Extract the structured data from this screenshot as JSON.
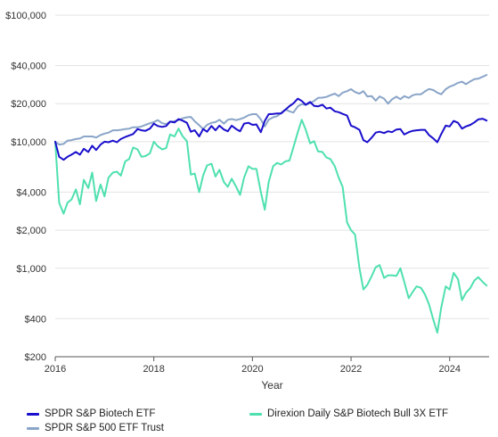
{
  "chart_data": {
    "type": "line",
    "title": "",
    "xlabel": "Year",
    "ylabel": "",
    "y_scale": "log",
    "ylim": [
      200,
      100000
    ],
    "xlim": [
      2016.0,
      2024.8
    ],
    "y_ticks": [
      {
        "value": 100000,
        "label": "$100,000"
      },
      {
        "value": 40000,
        "label": "$40,000"
      },
      {
        "value": 20000,
        "label": "$20,000"
      },
      {
        "value": 10000,
        "label": "$10,000"
      },
      {
        "value": 4000,
        "label": "$4,000"
      },
      {
        "value": 2000,
        "label": "$2,000"
      },
      {
        "value": 1000,
        "label": "$1,000"
      },
      {
        "value": 400,
        "label": "$400"
      },
      {
        "value": 200,
        "label": "$200"
      }
    ],
    "x_ticks": [
      {
        "value": 2016,
        "label": "2016"
      },
      {
        "value": 2018,
        "label": "2018"
      },
      {
        "value": 2020,
        "label": "2020"
      },
      {
        "value": 2022,
        "label": "2022"
      },
      {
        "value": 2024,
        "label": "2024"
      }
    ],
    "grid": "horizontal",
    "legend_position": "bottom",
    "series": [
      {
        "name": "SPDR S&P Biotech ETF",
        "color": "#1a0fcc",
        "x": [
          2016.0,
          2016.08,
          2016.17,
          2016.25,
          2016.33,
          2016.42,
          2016.5,
          2016.58,
          2016.67,
          2016.75,
          2016.83,
          2016.92,
          2017.0,
          2017.08,
          2017.17,
          2017.25,
          2017.33,
          2017.42,
          2017.5,
          2017.58,
          2017.67,
          2017.75,
          2017.83,
          2017.92,
          2018.0,
          2018.08,
          2018.17,
          2018.25,
          2018.33,
          2018.42,
          2018.5,
          2018.58,
          2018.67,
          2018.75,
          2018.83,
          2018.92,
          2019.0,
          2019.08,
          2019.17,
          2019.25,
          2019.33,
          2019.42,
          2019.5,
          2019.58,
          2019.67,
          2019.75,
          2019.83,
          2019.92,
          2020.0,
          2020.08,
          2020.17,
          2020.25,
          2020.33,
          2020.42,
          2020.5,
          2020.58,
          2020.67,
          2020.75,
          2020.83,
          2020.92,
          2021.0,
          2021.08,
          2021.17,
          2021.25,
          2021.33,
          2021.42,
          2021.5,
          2021.58,
          2021.67,
          2021.75,
          2021.83,
          2021.92,
          2022.0,
          2022.08,
          2022.17,
          2022.25,
          2022.33,
          2022.42,
          2022.5,
          2022.58,
          2022.67,
          2022.75,
          2022.83,
          2022.92,
          2023.0,
          2023.08,
          2023.17,
          2023.25,
          2023.33,
          2023.42,
          2023.5,
          2023.58,
          2023.67,
          2023.75,
          2023.83,
          2023.92,
          2024.0,
          2024.08,
          2024.17,
          2024.25,
          2024.33,
          2024.42,
          2024.5,
          2024.58,
          2024.67,
          2024.75
        ],
        "values": [
          10000,
          7600,
          7200,
          7600,
          7900,
          8300,
          7900,
          8800,
          8300,
          9300,
          8600,
          9500,
          10000,
          9900,
          10200,
          9900,
          10500,
          10900,
          11200,
          11500,
          12600,
          12300,
          12200,
          12700,
          13900,
          13300,
          13100,
          13300,
          14400,
          14200,
          15100,
          14700,
          14100,
          12000,
          12300,
          11000,
          12600,
          12000,
          13300,
          12300,
          13400,
          12500,
          12100,
          13400,
          12600,
          12100,
          13900,
          14100,
          13600,
          13700,
          11900,
          14600,
          16500,
          16600,
          16700,
          16700,
          17900,
          19100,
          20100,
          21900,
          21000,
          19600,
          20600,
          19200,
          19000,
          19600,
          18300,
          18600,
          17400,
          17100,
          16600,
          16100,
          13400,
          13000,
          12400,
          10300,
          9900,
          10800,
          11800,
          12000,
          11700,
          12100,
          11900,
          12500,
          12600,
          11400,
          11900,
          12200,
          12300,
          12400,
          12400,
          11300,
          10600,
          9900,
          11500,
          13400,
          13200,
          14600,
          14100,
          12700,
          13200,
          13600,
          14200,
          15000,
          15200,
          14700
        ]
      },
      {
        "name": "SPDR S&P 500 ETF Trust",
        "color": "#8aa5c8",
        "x": [
          2016.0,
          2016.08,
          2016.17,
          2016.25,
          2016.33,
          2016.42,
          2016.5,
          2016.58,
          2016.67,
          2016.75,
          2016.83,
          2016.92,
          2017.0,
          2017.08,
          2017.17,
          2017.25,
          2017.33,
          2017.42,
          2017.5,
          2017.58,
          2017.67,
          2017.75,
          2017.83,
          2017.92,
          2018.0,
          2018.08,
          2018.17,
          2018.25,
          2018.33,
          2018.42,
          2018.5,
          2018.58,
          2018.67,
          2018.75,
          2018.83,
          2018.92,
          2019.0,
          2019.08,
          2019.17,
          2019.25,
          2019.33,
          2019.42,
          2019.5,
          2019.58,
          2019.67,
          2019.75,
          2019.83,
          2019.92,
          2020.0,
          2020.08,
          2020.17,
          2020.25,
          2020.33,
          2020.42,
          2020.5,
          2020.58,
          2020.67,
          2020.75,
          2020.83,
          2020.92,
          2021.0,
          2021.08,
          2021.17,
          2021.25,
          2021.33,
          2021.42,
          2021.5,
          2021.58,
          2021.67,
          2021.75,
          2021.83,
          2021.92,
          2022.0,
          2022.08,
          2022.17,
          2022.25,
          2022.33,
          2022.42,
          2022.5,
          2022.58,
          2022.67,
          2022.75,
          2022.83,
          2022.92,
          2023.0,
          2023.08,
          2023.17,
          2023.25,
          2023.33,
          2023.42,
          2023.5,
          2023.58,
          2023.67,
          2023.75,
          2023.83,
          2023.92,
          2024.0,
          2024.08,
          2024.17,
          2024.25,
          2024.33,
          2024.42,
          2024.5,
          2024.58,
          2024.67,
          2024.75
        ],
        "values": [
          10000,
          9500,
          9600,
          10200,
          10300,
          10500,
          10600,
          11000,
          11000,
          11000,
          10800,
          11300,
          11600,
          11800,
          12300,
          12300,
          12400,
          12600,
          12700,
          13000,
          13000,
          13200,
          13600,
          14000,
          14300,
          14800,
          14000,
          13800,
          14400,
          14500,
          14800,
          15300,
          15600,
          15700,
          14500,
          13500,
          12600,
          13600,
          14100,
          14300,
          14900,
          13900,
          14900,
          15100,
          14800,
          15100,
          15500,
          16200,
          16500,
          16500,
          15000,
          13200,
          14900,
          15600,
          15900,
          16900,
          18000,
          17400,
          17000,
          19000,
          19800,
          19500,
          20200,
          21000,
          22200,
          22300,
          22600,
          23300,
          24000,
          22900,
          24400,
          25100,
          26000,
          24700,
          24000,
          25100,
          22800,
          22900,
          21100,
          22800,
          21900,
          20000,
          21600,
          22700,
          21700,
          22900,
          22200,
          23300,
          23700,
          23700,
          25000,
          26100,
          25600,
          24400,
          23700,
          26000,
          27200,
          28000,
          29200,
          29800,
          28500,
          30000,
          31200,
          31500,
          32600,
          33700
        ]
      },
      {
        "name": "Direxion Daily S&P Biotech Bull 3X ETF",
        "color": "#4fe0b0",
        "x": [
          2016.0,
          2016.08,
          2016.17,
          2016.25,
          2016.33,
          2016.42,
          2016.5,
          2016.58,
          2016.67,
          2016.75,
          2016.83,
          2016.92,
          2017.0,
          2017.08,
          2017.17,
          2017.25,
          2017.33,
          2017.42,
          2017.5,
          2017.58,
          2017.67,
          2017.75,
          2017.83,
          2017.92,
          2018.0,
          2018.08,
          2018.17,
          2018.25,
          2018.33,
          2018.42,
          2018.5,
          2018.58,
          2018.67,
          2018.75,
          2018.83,
          2018.92,
          2019.0,
          2019.08,
          2019.17,
          2019.25,
          2019.33,
          2019.42,
          2019.5,
          2019.58,
          2019.67,
          2019.75,
          2019.83,
          2019.92,
          2020.0,
          2020.08,
          2020.17,
          2020.25,
          2020.33,
          2020.42,
          2020.5,
          2020.58,
          2020.67,
          2020.75,
          2020.83,
          2020.92,
          2021.0,
          2021.08,
          2021.17,
          2021.25,
          2021.33,
          2021.42,
          2021.5,
          2021.58,
          2021.67,
          2021.75,
          2021.83,
          2021.92,
          2022.0,
          2022.08,
          2022.17,
          2022.25,
          2022.33,
          2022.42,
          2022.5,
          2022.58,
          2022.67,
          2022.75,
          2022.83,
          2022.92,
          2023.0,
          2023.08,
          2023.17,
          2023.25,
          2023.33,
          2023.42,
          2023.5,
          2023.58,
          2023.67,
          2023.75,
          2023.83,
          2023.92,
          2024.0,
          2024.08,
          2024.17,
          2024.25,
          2024.33,
          2024.42,
          2024.5,
          2024.58,
          2024.67,
          2024.75
        ],
        "values": [
          10000,
          3300,
          2700,
          3300,
          3500,
          4200,
          3200,
          5000,
          4300,
          5700,
          3400,
          4600,
          3700,
          5200,
          5700,
          5800,
          5400,
          7000,
          7300,
          9000,
          8700,
          7600,
          7700,
          8100,
          10000,
          9200,
          8700,
          8900,
          11400,
          11000,
          12700,
          11100,
          10100,
          5500,
          5600,
          4000,
          5400,
          6500,
          6700,
          5300,
          6000,
          4800,
          4400,
          5100,
          4400,
          3800,
          5200,
          6400,
          6100,
          6100,
          4000,
          2900,
          4800,
          6400,
          6800,
          6600,
          7000,
          7100,
          9000,
          11900,
          14900,
          12500,
          9700,
          10100,
          8400,
          8300,
          7500,
          7300,
          6400,
          5200,
          4400,
          2300,
          2000,
          1850,
          1000,
          680,
          740,
          870,
          1020,
          1060,
          840,
          880,
          880,
          870,
          1000,
          780,
          580,
          650,
          720,
          700,
          620,
          520,
          390,
          310,
          490,
          720,
          680,
          920,
          820,
          560,
          640,
          700,
          800,
          850,
          780,
          730
        ]
      }
    ]
  }
}
